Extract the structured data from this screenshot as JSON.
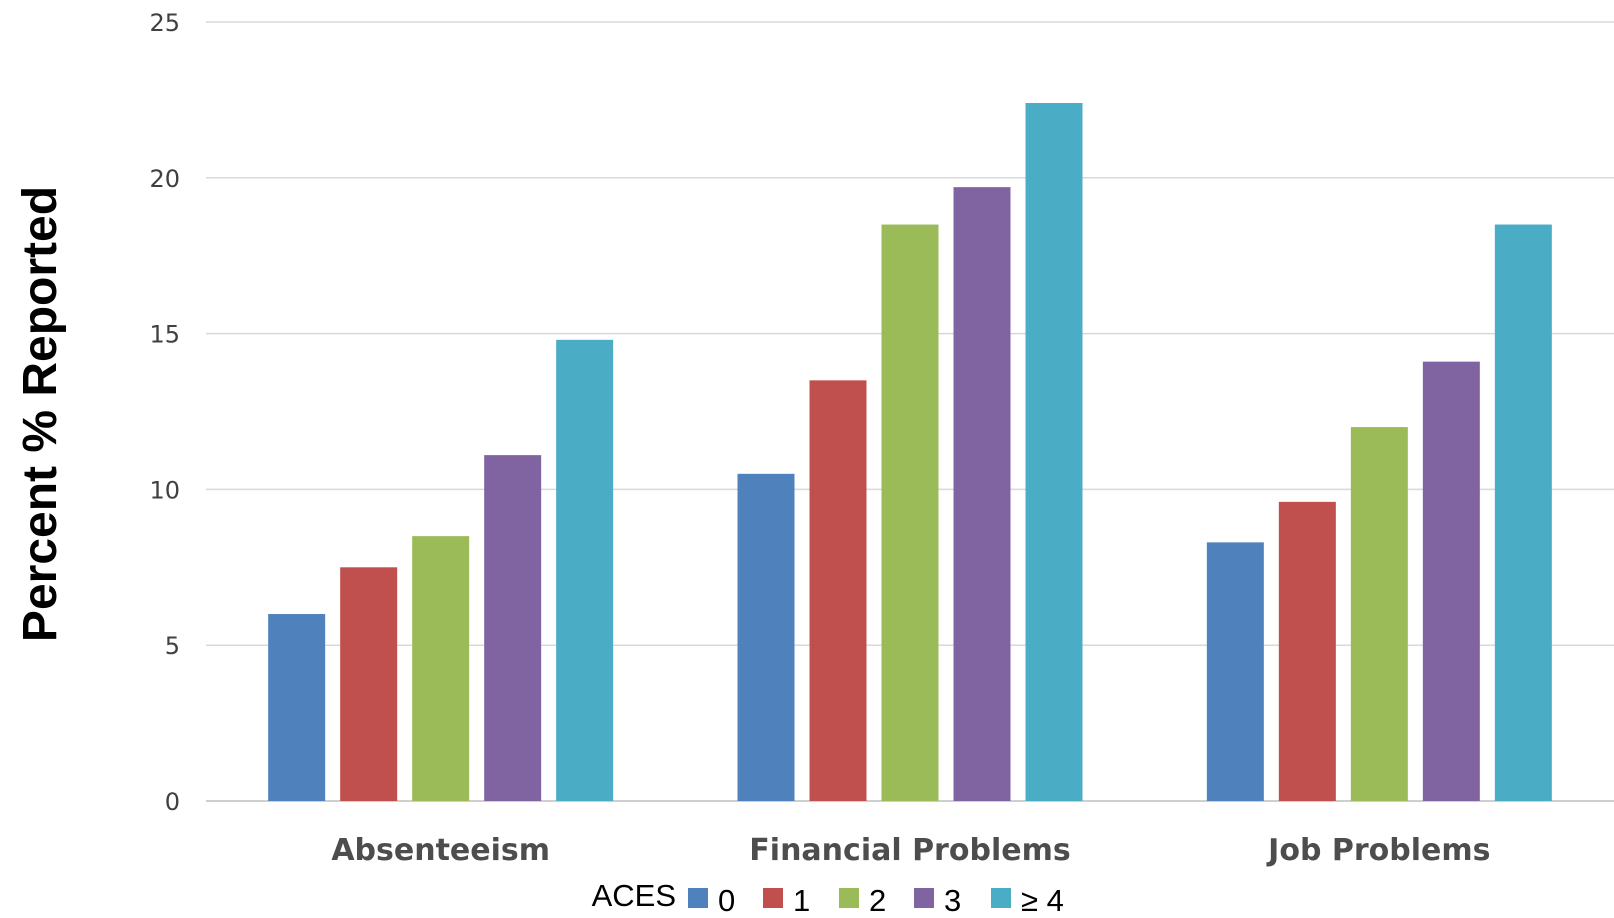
{
  "chart_data": {
    "type": "bar",
    "title": "",
    "xlabel": "",
    "ylabel": "Percent % Reported",
    "categories": [
      "Absenteeism",
      "Financial Problems",
      "Job Problems"
    ],
    "series": [
      {
        "name": "0",
        "color": "#4F81BD",
        "values": [
          6.0,
          10.5,
          8.3
        ]
      },
      {
        "name": "1",
        "color": "#C0504D",
        "values": [
          7.5,
          13.5,
          9.6
        ]
      },
      {
        "name": "2",
        "color": "#9BBB59",
        "values": [
          8.5,
          18.5,
          12.0
        ]
      },
      {
        "name": "3",
        "color": "#8064A2",
        "values": [
          11.1,
          19.7,
          14.1
        ]
      },
      {
        "name": "≥ 4",
        "color": "#4BACC6",
        "values": [
          14.8,
          22.4,
          18.5
        ]
      }
    ],
    "ylim": [
      0,
      25
    ],
    "yticks": [
      "0",
      "5",
      "10",
      "15",
      "20",
      "25"
    ],
    "grid": true,
    "legend": {
      "title": "ACES",
      "position": "bottom"
    }
  }
}
